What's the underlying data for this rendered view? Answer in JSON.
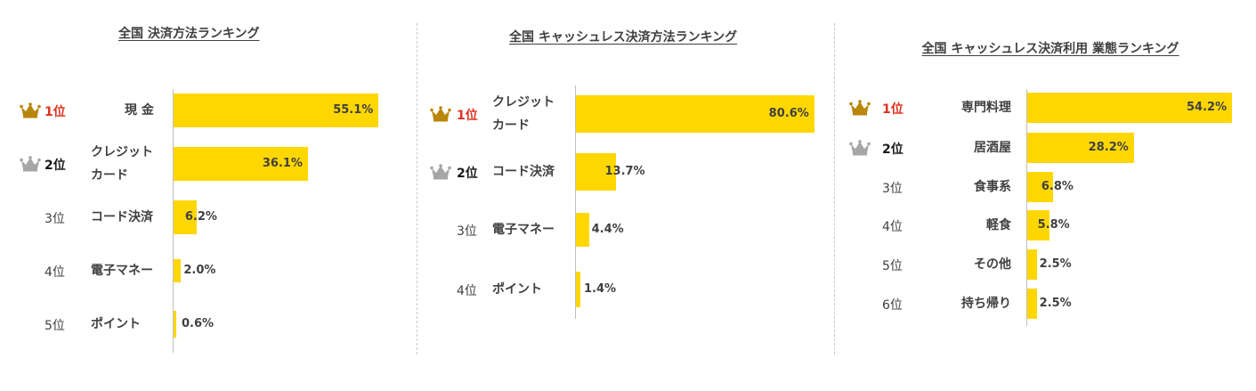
{
  "colors": {
    "bar": "#ffd700",
    "rank1": "#e0301e",
    "crown_gold": "#b8860b",
    "crown_silver": "#a6a6a6"
  },
  "chart_data": [
    {
      "type": "bar",
      "title": "全国 決済方法ランキング",
      "ranks": [
        "1位",
        "2位",
        "3位",
        "4位",
        "5位"
      ],
      "categories": [
        "現 金",
        "クレジット\nカード",
        "コード決済",
        "電子マネー",
        "ポイント"
      ],
      "values": [
        55.1,
        36.1,
        6.2,
        2.0,
        0.6
      ],
      "value_labels": [
        "55.1%",
        "36.1%",
        "6.2%",
        "2.0%",
        "0.6%"
      ],
      "unit": "%"
    },
    {
      "type": "bar",
      "title": "全国 キャッシュレス決済方法ランキング",
      "ranks": [
        "1位",
        "2位",
        "3位",
        "4位"
      ],
      "categories": [
        "クレジット\nカード",
        "コード決済",
        "電子マネー",
        "ポイント"
      ],
      "values": [
        80.6,
        13.7,
        4.4,
        1.4
      ],
      "value_labels": [
        "80.6%",
        "13.7%",
        "4.4%",
        "1.4%"
      ],
      "unit": "%"
    },
    {
      "type": "bar",
      "title": "全国 キャッシュレス決済利用 業態ランキング",
      "ranks": [
        "1位",
        "2位",
        "3位",
        "4位",
        "5位",
        "6位"
      ],
      "categories": [
        "専門料理",
        "居酒屋",
        "食事系",
        "軽食",
        "その他",
        "持ち帰り"
      ],
      "values": [
        54.2,
        28.2,
        6.8,
        5.8,
        2.5,
        2.5
      ],
      "value_labels": [
        "54.2%",
        "28.2%",
        "6.8%",
        "5.8%",
        "2.5%",
        "2.5%"
      ],
      "unit": "%"
    }
  ]
}
